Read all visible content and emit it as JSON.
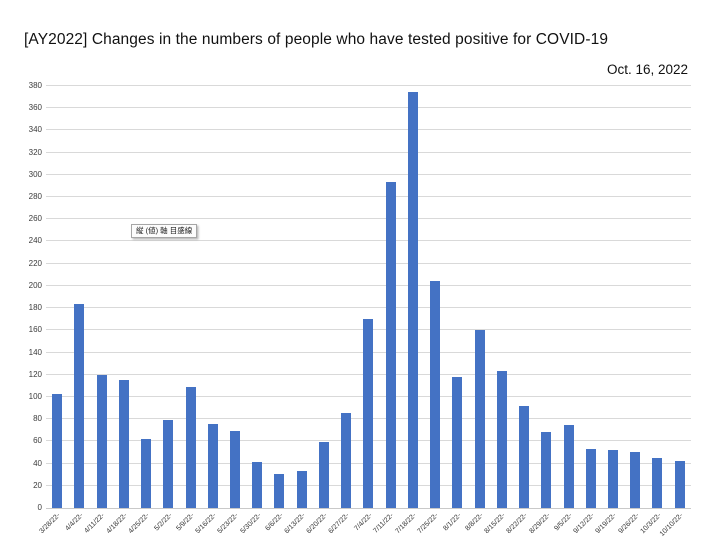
{
  "title": "[AY2022] Changes in the numbers of people who have tested positive for COVID-19",
  "date_label": "Oct. 16, 2022",
  "tooltip": {
    "label": "縦 (値) 軸 目盛線"
  },
  "chart_data": {
    "type": "bar",
    "title": "[AY2022] Changes in the numbers of people who have tested positive for COVID-19",
    "subtitle": "Oct. 16, 2022",
    "categories": [
      "3/28/22-",
      "4/4/22-",
      "4/11/22-",
      "4/18/22-",
      "4/25/22-",
      "5/2/22-",
      "5/9/22-",
      "5/16/22-",
      "5/23/22-",
      "5/30/22-",
      "6/6/22-",
      "6/13/22-",
      "6/20/22-",
      "6/27/22-",
      "7/4/22-",
      "7/11/22-",
      "7/18/22-",
      "7/25/22-",
      "8/1/22-",
      "8/8/22-",
      "8/15/22-",
      "8/22/22-",
      "8/29/22-",
      "9/5/22-",
      "9/12/22-",
      "9/19/22-",
      "9/26/22-",
      "10/3/22-",
      "10/10/22-"
    ],
    "values": [
      103,
      184,
      120,
      115,
      62,
      79,
      109,
      76,
      69,
      41,
      31,
      33,
      59,
      86,
      170,
      294,
      375,
      204,
      118,
      160,
      123,
      92,
      68,
      75,
      53,
      52,
      50,
      45,
      42
    ],
    "xlabel": "",
    "ylabel": "",
    "ylim": [
      0,
      380
    ],
    "ytick_step": 20,
    "grid": true,
    "legend": "none",
    "bar_color": "#4472C4",
    "gridline_color": "#d9d9d9",
    "axis_line_color": "#c9c9c9",
    "label_color": "#3b3b3b"
  }
}
